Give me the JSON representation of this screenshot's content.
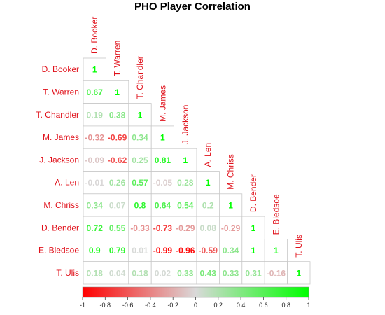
{
  "chart_data": {
    "type": "heatmap",
    "title": "PHO Player Correlation",
    "players": [
      "D. Booker",
      "T. Warren",
      "T. Chandler",
      "M. James",
      "J. Jackson",
      "A. Len",
      "M. Chriss",
      "D. Bender",
      "E. Bledsoe",
      "T. Ulis"
    ],
    "matrix": [
      [
        "1"
      ],
      [
        "0.67",
        "1"
      ],
      [
        "0.19",
        "0.38",
        "1"
      ],
      [
        "-0.32",
        "-0.69",
        "0.34",
        "1"
      ],
      [
        "-0.09",
        "-0.62",
        "0.25",
        "0.81",
        "1"
      ],
      [
        "-0.01",
        "0.26",
        "0.57",
        "-0.05",
        "0.28",
        "1"
      ],
      [
        "0.34",
        "0.07",
        "0.8",
        "0.64",
        "0.54",
        "0.2",
        "1"
      ],
      [
        "0.72",
        "0.55",
        "-0.33",
        "-0.73",
        "-0.29",
        "0.08",
        "-0.29",
        "1"
      ],
      [
        "0.9",
        "0.79",
        "0.01",
        "-0.99",
        "-0.96",
        "-0.59",
        "0.34",
        "1",
        "1"
      ],
      [
        "0.18",
        "0.04",
        "0.18",
        "0.02",
        "0.33",
        "0.43",
        "0.33",
        "0.31",
        "-0.16",
        "1"
      ]
    ],
    "colorbar": {
      "range": [
        -1,
        1
      ],
      "ticks": [
        "-1",
        "-0.8",
        "-0.6",
        "-0.4",
        "-0.2",
        "0",
        "0.2",
        "0.4",
        "0.6",
        "0.8",
        "1"
      ],
      "low_color": "#ff0000",
      "mid_color": "#d9d9d9",
      "high_color": "#00ff00"
    },
    "label_color": "#e0101a"
  }
}
